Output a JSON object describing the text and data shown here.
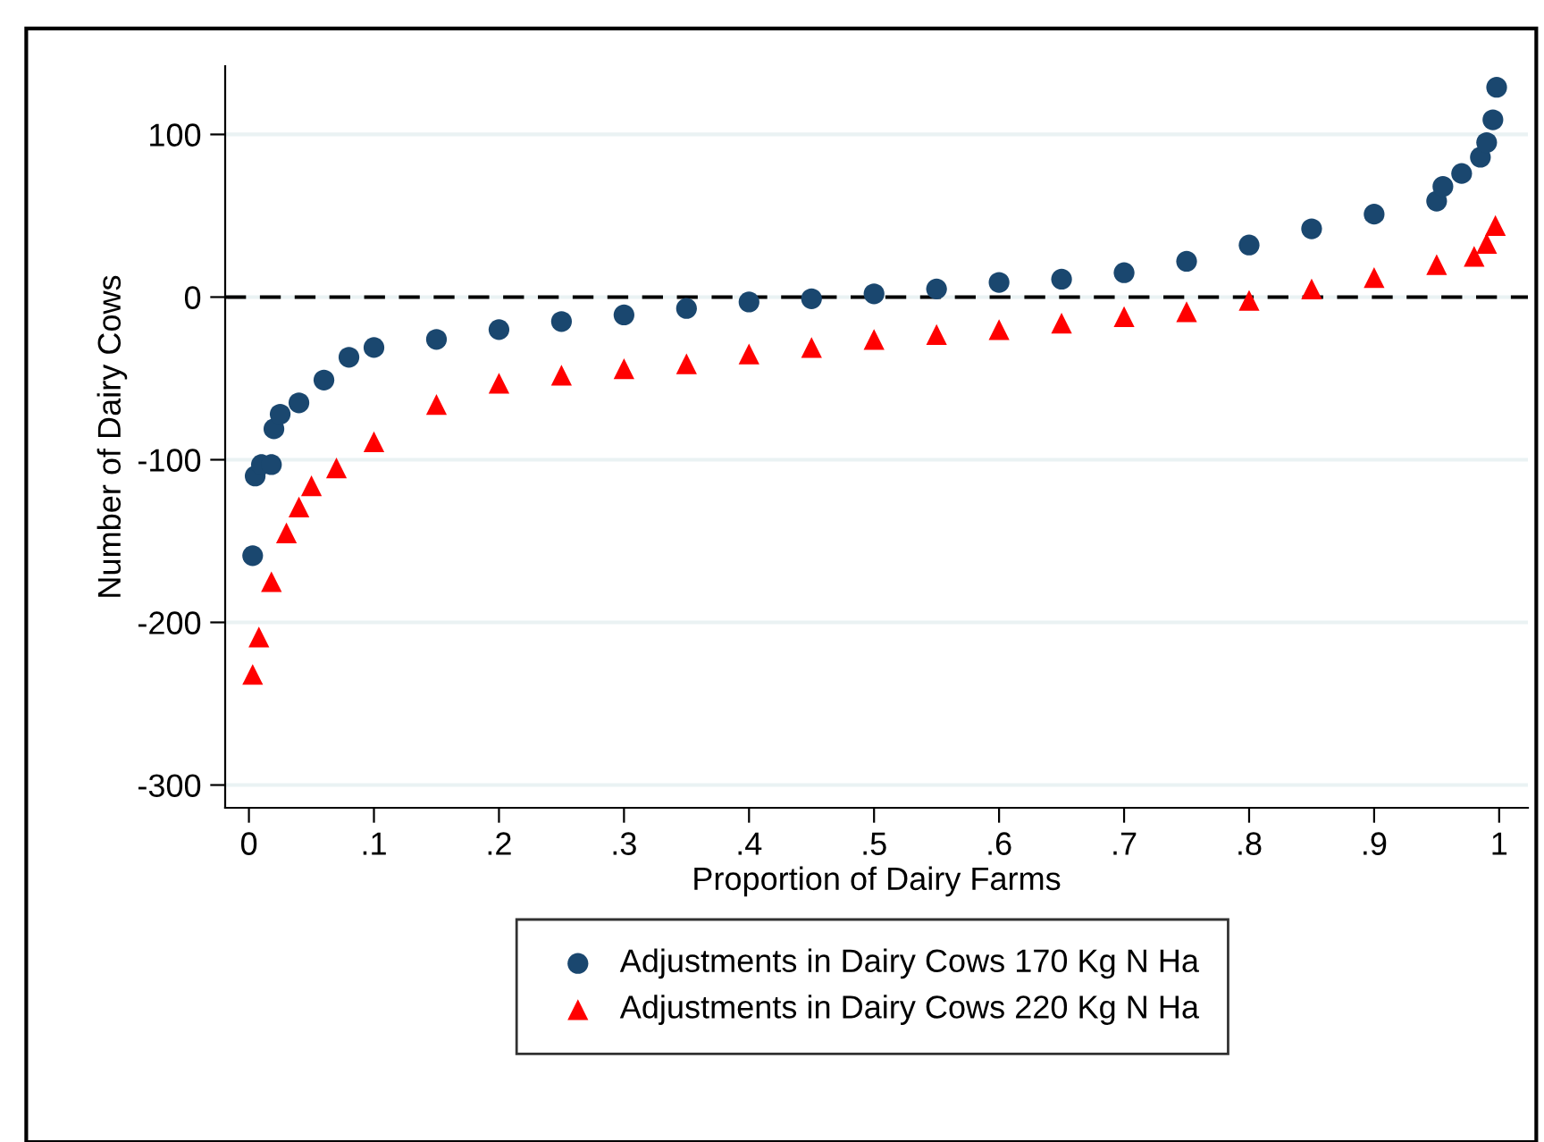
{
  "chart_data": {
    "type": "scatter",
    "xlabel": "Proportion of Dairy Farms",
    "ylabel": "Number of Dairy Cows",
    "series": [
      {
        "name": "Adjustments in Dairy Cows 170 Kg N Ha",
        "color": "#1a476f",
        "marker": "circle",
        "x": [
          0.003,
          0.005,
          0.01,
          0.018,
          0.02,
          0.025,
          0.04,
          0.06,
          0.08,
          0.1,
          0.15,
          0.2,
          0.25,
          0.3,
          0.35,
          0.4,
          0.45,
          0.5,
          0.55,
          0.6,
          0.65,
          0.7,
          0.75,
          0.8,
          0.85,
          0.9,
          0.95,
          0.955,
          0.97,
          0.985,
          0.99,
          0.995,
          0.998
        ],
        "values": [
          -159,
          -110,
          -103,
          -103,
          -81,
          -72,
          -65,
          -51,
          -37,
          -31,
          -26,
          -20,
          -15,
          -11,
          -7,
          -3,
          -1,
          2,
          5,
          9,
          11,
          15,
          22,
          32,
          42,
          51,
          59,
          68,
          76,
          86,
          95,
          109,
          129
        ]
      },
      {
        "name": "Adjustments in Dairy Cows 220 Kg N Ha",
        "color": "#ff0000",
        "marker": "triangle",
        "x": [
          0.003,
          0.008,
          0.018,
          0.03,
          0.04,
          0.05,
          0.07,
          0.1,
          0.15,
          0.2,
          0.25,
          0.3,
          0.35,
          0.4,
          0.45,
          0.5,
          0.55,
          0.6,
          0.65,
          0.7,
          0.75,
          0.8,
          0.85,
          0.9,
          0.95,
          0.98,
          0.99,
          0.997
        ],
        "values": [
          -232,
          -209,
          -175,
          -145,
          -129,
          -116,
          -105,
          -89,
          -66,
          -53,
          -48,
          -44,
          -41,
          -35,
          -31,
          -26,
          -23,
          -20,
          -16,
          -12,
          -9,
          -2,
          5,
          12,
          20,
          25,
          33,
          44
        ]
      }
    ],
    "xlim": [
      -0.019,
      1.023
    ],
    "xticks": [
      0,
      {
        "value": 0.1,
        "label": ".1"
      },
      {
        "value": 0.2,
        "label": ".2"
      },
      {
        "value": 0.3,
        "label": ".3"
      },
      {
        "value": 0.4,
        "label": ".4"
      },
      {
        "value": 0.5,
        "label": ".5"
      },
      {
        "value": 0.6,
        "label": ".6"
      },
      {
        "value": 0.7,
        "label": ".7"
      },
      {
        "value": 0.8,
        "label": ".8"
      },
      {
        "value": 0.9,
        "label": ".9"
      },
      1
    ],
    "ylim": [
      -314,
      142
    ],
    "yticks": [
      -300,
      -200,
      -100,
      0,
      100
    ],
    "grid": "y",
    "ref_lines": [
      {
        "axis": "y",
        "value": 0,
        "color": "#000000",
        "line_style": "dashed"
      }
    ],
    "legend": "bottom"
  }
}
